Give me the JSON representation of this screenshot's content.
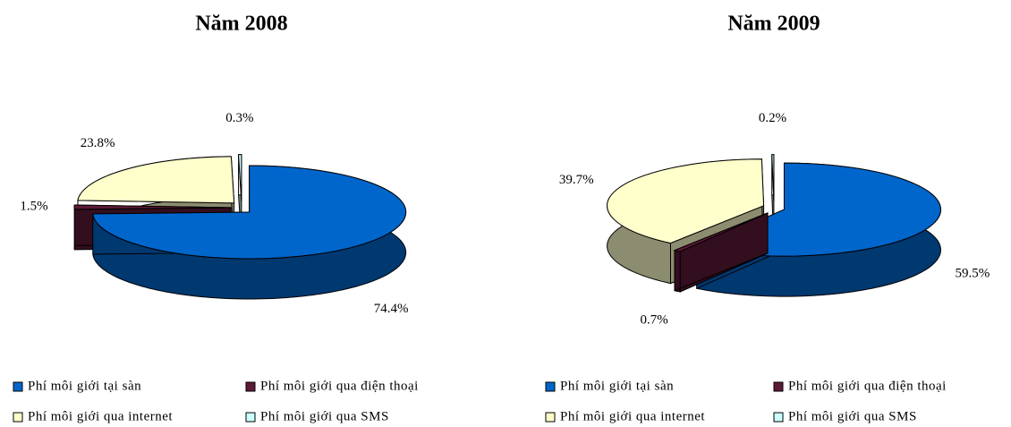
{
  "chart_data": [
    {
      "type": "pie",
      "title": "Năm 2008",
      "categories": [
        "Phí môi giới tại sàn",
        "Phí môi giới qua điện thoại",
        "Phí môi giới qua internet",
        "Phí môi giới qua SMS"
      ],
      "values": [
        74.4,
        1.5,
        23.8,
        0.3
      ],
      "value_labels": [
        "74.4%",
        "1.5%",
        "23.8%",
        "0.3%"
      ],
      "colors": [
        "#0066cc",
        "#5c1a36",
        "#ffffcc",
        "#ccffff"
      ]
    },
    {
      "type": "pie",
      "title": "Năm 2009",
      "categories": [
        "Phí môi giới tại sàn",
        "Phí môi giới qua điện thoại",
        "Phí môi giới qua internet",
        "Phí môi giới qua SMS"
      ],
      "values": [
        59.5,
        0.7,
        39.7,
        0.2
      ],
      "value_labels": [
        "59.5%",
        "0.7%",
        "39.7%",
        "0.2%"
      ],
      "colors": [
        "#0066cc",
        "#5c1a36",
        "#ffffcc",
        "#ccffff"
      ]
    }
  ]
}
